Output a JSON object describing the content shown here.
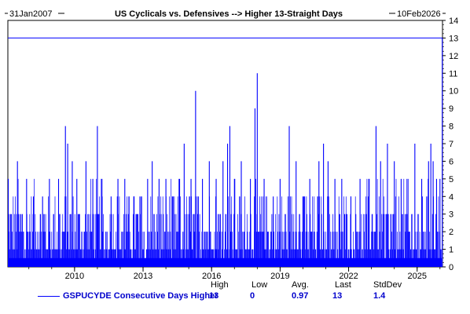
{
  "chart_data": {
    "type": "bar",
    "title": "US Cyclicals vs. Defensives --> Higher 13-Straight Days",
    "start_date": "31Jan2007",
    "end_date": "10Feb2026",
    "x_tick_labels": [
      "2010",
      "2013",
      "2016",
      "2019",
      "2022",
      "2025"
    ],
    "x_tick_years": [
      2010,
      2013,
      2016,
      2019,
      2022,
      2025
    ],
    "x_range": [
      2007.08,
      2026.11
    ],
    "ylim": [
      0,
      14
    ],
    "y_ticks": [
      0,
      1,
      2,
      3,
      4,
      5,
      6,
      7,
      8,
      9,
      10,
      11,
      12,
      13,
      14
    ],
    "reference_line": 13,
    "series": [
      {
        "name": "GSPUCYDE Consecutive Days Higher",
        "color": "#0000ff",
        "peaks": [
          {
            "x": 2007.1,
            "y": 5
          },
          {
            "x": 2007.5,
            "y": 6
          },
          {
            "x": 2007.9,
            "y": 5
          },
          {
            "x": 2008.2,
            "y": 4
          },
          {
            "x": 2008.6,
            "y": 4
          },
          {
            "x": 2008.9,
            "y": 5
          },
          {
            "x": 2009.3,
            "y": 5
          },
          {
            "x": 2009.6,
            "y": 8
          },
          {
            "x": 2009.7,
            "y": 7
          },
          {
            "x": 2009.9,
            "y": 6
          },
          {
            "x": 2010.1,
            "y": 5
          },
          {
            "x": 2010.5,
            "y": 6
          },
          {
            "x": 2010.8,
            "y": 5
          },
          {
            "x": 2011.0,
            "y": 8
          },
          {
            "x": 2011.2,
            "y": 5
          },
          {
            "x": 2011.6,
            "y": 4
          },
          {
            "x": 2011.9,
            "y": 5
          },
          {
            "x": 2012.2,
            "y": 5
          },
          {
            "x": 2012.6,
            "y": 4
          },
          {
            "x": 2012.9,
            "y": 4
          },
          {
            "x": 2013.2,
            "y": 5
          },
          {
            "x": 2013.4,
            "y": 6
          },
          {
            "x": 2013.7,
            "y": 5
          },
          {
            "x": 2014.0,
            "y": 5
          },
          {
            "x": 2014.3,
            "y": 4
          },
          {
            "x": 2014.6,
            "y": 5
          },
          {
            "x": 2014.8,
            "y": 7
          },
          {
            "x": 2015.1,
            "y": 5
          },
          {
            "x": 2015.3,
            "y": 10
          },
          {
            "x": 2015.6,
            "y": 5
          },
          {
            "x": 2015.9,
            "y": 6
          },
          {
            "x": 2016.2,
            "y": 5
          },
          {
            "x": 2016.5,
            "y": 6
          },
          {
            "x": 2016.7,
            "y": 7
          },
          {
            "x": 2016.8,
            "y": 8
          },
          {
            "x": 2017.0,
            "y": 5
          },
          {
            "x": 2017.3,
            "y": 6
          },
          {
            "x": 2017.7,
            "y": 5
          },
          {
            "x": 2017.9,
            "y": 9
          },
          {
            "x": 2018.0,
            "y": 11
          },
          {
            "x": 2018.3,
            "y": 5
          },
          {
            "x": 2018.7,
            "y": 4
          },
          {
            "x": 2019.0,
            "y": 5
          },
          {
            "x": 2019.4,
            "y": 8
          },
          {
            "x": 2019.7,
            "y": 6
          },
          {
            "x": 2020.0,
            "y": 4
          },
          {
            "x": 2020.3,
            "y": 5
          },
          {
            "x": 2020.7,
            "y": 6
          },
          {
            "x": 2020.9,
            "y": 7
          },
          {
            "x": 2021.1,
            "y": 6
          },
          {
            "x": 2021.4,
            "y": 5
          },
          {
            "x": 2021.7,
            "y": 5
          },
          {
            "x": 2022.1,
            "y": 4
          },
          {
            "x": 2022.5,
            "y": 5
          },
          {
            "x": 2022.9,
            "y": 5
          },
          {
            "x": 2023.2,
            "y": 8
          },
          {
            "x": 2023.4,
            "y": 6
          },
          {
            "x": 2023.7,
            "y": 7
          },
          {
            "x": 2024.0,
            "y": 6
          },
          {
            "x": 2024.3,
            "y": 5
          },
          {
            "x": 2024.6,
            "y": 5
          },
          {
            "x": 2024.9,
            "y": 7
          },
          {
            "x": 2025.2,
            "y": 5
          },
          {
            "x": 2025.5,
            "y": 6
          },
          {
            "x": 2025.6,
            "y": 7
          },
          {
            "x": 2025.7,
            "y": 6
          },
          {
            "x": 2025.85,
            "y": 5
          },
          {
            "x": 2026.0,
            "y": 5
          },
          {
            "x": 2026.1,
            "y": 13
          }
        ]
      }
    ]
  },
  "legend": {
    "series_label": "GSPUCYDE Consecutive Days Higher",
    "stats": [
      {
        "label": "High",
        "value": "13"
      },
      {
        "label": "Low",
        "value": "0"
      },
      {
        "label": "Avg.",
        "value": "0.97"
      },
      {
        "label": "Last",
        "value": "13"
      },
      {
        "label": "StdDev",
        "value": "1.4"
      }
    ]
  },
  "colors": {
    "series": "#0000ff",
    "axis": "#000000",
    "background": "#ffffff"
  }
}
